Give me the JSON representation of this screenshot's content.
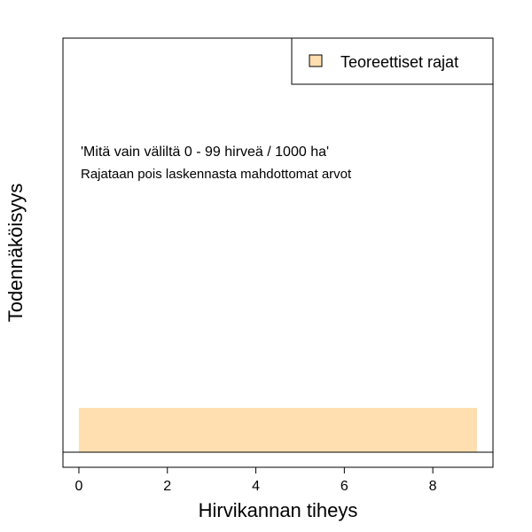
{
  "chart_data": {
    "type": "area",
    "title": "",
    "xlabel": "Hirvikannan tiheys",
    "ylabel": "Todennäköisyys",
    "xlim": [
      -0.36,
      9.36
    ],
    "ylim": [
      0,
      1
    ],
    "x_ticks": [
      0,
      2,
      4,
      6,
      8
    ],
    "x_tick_labels": [
      "0",
      "2",
      "4",
      "6",
      "8"
    ],
    "y_ticks": [],
    "grid": false,
    "legend": {
      "position": "top-right",
      "entries": [
        {
          "label": "Teoreettiset rajat",
          "color": "#FFDFB0"
        }
      ]
    },
    "series": [
      {
        "name": "Teoreettiset rajat",
        "type": "rect",
        "x_range": [
          0,
          9
        ],
        "y_range": [
          0,
          0.1
        ],
        "color": "#FFDFB0"
      }
    ],
    "baseline_y": 0,
    "annotations": [
      "'Mitä vain väliltä 0 - 99 hirveä / 1000 ha'",
      "Rajataan pois laskennasta mahdottomat arvot"
    ]
  }
}
